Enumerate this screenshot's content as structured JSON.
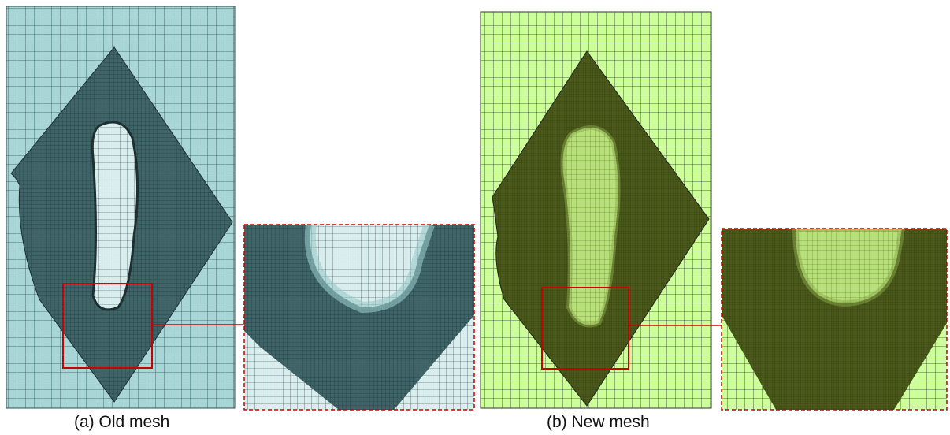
{
  "figure": {
    "captions": [
      "(a) Old mesh",
      "(b) New mesh"
    ]
  }
}
